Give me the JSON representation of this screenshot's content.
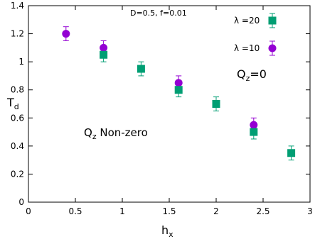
{
  "chart_data": {
    "type": "scatter",
    "xlabel": "h",
    "xlabel_sub": "x",
    "ylabel": "T",
    "ylabel_sub": "d",
    "xlim": [
      0,
      3
    ],
    "ylim": [
      0,
      1.4
    ],
    "xticks": [
      0,
      0.5,
      1,
      1.5,
      2,
      2.5,
      3
    ],
    "xtick_labels": [
      "0",
      "0.5",
      "1",
      "1.5",
      "2",
      "2.5",
      "3"
    ],
    "yticks": [
      0,
      0.2,
      0.4,
      0.6,
      0.8,
      1,
      1.2,
      1.4
    ],
    "ytick_labels": [
      "0",
      "0.2",
      "0.4",
      "0.6",
      "0.8",
      "1",
      "1.2",
      "1.4"
    ],
    "grid": false,
    "legend_position": "top-right",
    "annotations": {
      "params": "D=0.5, f=0.01",
      "qz_zero_main": "Q",
      "qz_zero_sub": "z",
      "qz_zero_tail": "=0",
      "qz_nonzero_main": "Q",
      "qz_nonzero_sub": "z",
      "qz_nonzero_tail": " Non-zero"
    },
    "series": [
      {
        "name": "λ =20",
        "marker": "square",
        "color": "#009e73",
        "x": [
          0.8,
          1.2,
          1.6,
          2.0,
          2.4,
          2.8
        ],
        "y": [
          1.05,
          0.95,
          0.8,
          0.7,
          0.5,
          0.35
        ],
        "err": [
          0.05,
          0.05,
          0.05,
          0.05,
          0.05,
          0.05
        ]
      },
      {
        "name": "λ =10",
        "marker": "circle",
        "color": "#9400d3",
        "x": [
          0.4,
          0.8,
          1.6,
          2.4
        ],
        "y": [
          1.2,
          1.1,
          0.85,
          0.55
        ],
        "err": [
          0.05,
          0.05,
          0.05,
          0.05
        ]
      }
    ]
  }
}
